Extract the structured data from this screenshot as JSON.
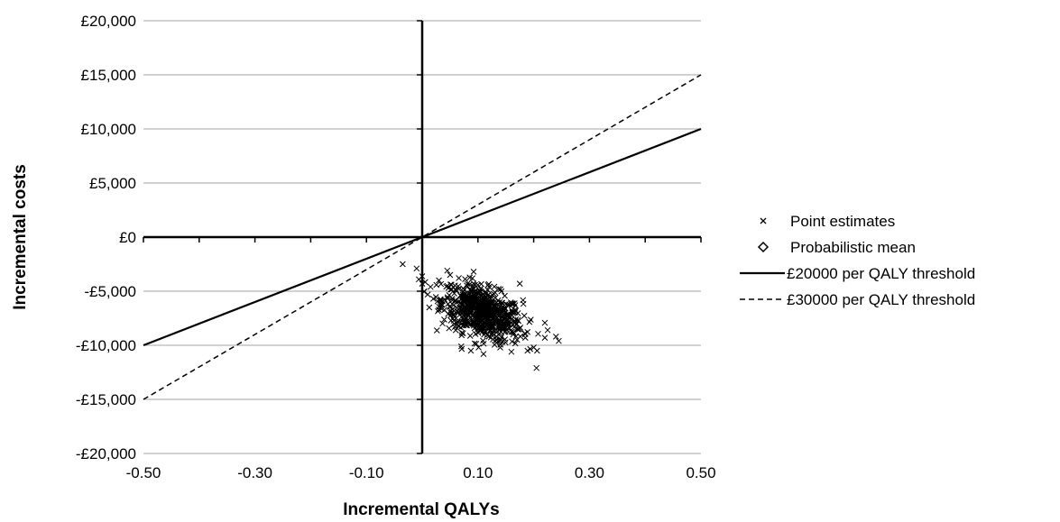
{
  "chart_data": {
    "type": "scatter",
    "title": "",
    "xlabel": "Incremental QALYs",
    "ylabel": "Incremental costs",
    "xlim": [
      -0.5,
      0.5
    ],
    "ylim": [
      -20000,
      20000
    ],
    "xticks": [
      -0.5,
      -0.3,
      -0.1,
      0.1,
      0.3,
      0.5
    ],
    "xtick_labels": [
      "-0.50",
      "-0.30",
      "-0.10",
      "0.10",
      "0.30",
      "0.50"
    ],
    "yticks": [
      20000,
      15000,
      10000,
      5000,
      0,
      -5000,
      -10000,
      -15000,
      -20000
    ],
    "ytick_labels": [
      "£20,000",
      "£15,000",
      "£10,000",
      "£5,000",
      "£0",
      "-£5,000",
      "-£10,000",
      "-£15,000",
      "-£20,000"
    ],
    "grid": "horizontal",
    "legend_position": "right",
    "series": [
      {
        "name": "Point estimates",
        "kind": "scatter",
        "marker": "x",
        "cloud": {
          "count": 700,
          "mean": [
            0.108,
            -7000
          ],
          "sd": [
            0.036,
            1300
          ],
          "correlation": -0.45
        },
        "points": [
          [
            -0.035,
            -2500
          ],
          [
            -0.01,
            -2900
          ],
          [
            -0.006,
            -3900
          ],
          [
            0.0,
            -4300
          ],
          [
            0.01,
            -5300
          ],
          [
            0.015,
            -4600
          ],
          [
            0.03,
            -4000
          ],
          [
            0.045,
            -3100
          ],
          [
            0.05,
            -3500
          ],
          [
            0.205,
            -12100
          ],
          [
            0.24,
            -9200
          ],
          [
            0.245,
            -9600
          ],
          [
            0.22,
            -9300
          ],
          [
            0.16,
            -10600
          ],
          [
            0.14,
            -10200
          ],
          [
            0.07,
            -10100
          ],
          [
            0.11,
            -10800
          ],
          [
            0.225,
            -8600
          ],
          [
            0.2,
            -10200
          ],
          [
            0.185,
            -9300
          ],
          [
            0.175,
            -4300
          ],
          [
            0.12,
            -4600
          ],
          [
            0.09,
            -3800
          ],
          [
            0.02,
            -5700
          ],
          [
            0.035,
            -6200
          ]
        ]
      },
      {
        "name": "Probabilistic mean",
        "kind": "scatter",
        "marker": "diamond",
        "points": [
          [
            0.108,
            -7000
          ]
        ]
      },
      {
        "name": "£20000 per QALY threshold",
        "kind": "line",
        "style": "solid",
        "x": [
          -0.5,
          0.5
        ],
        "y": [
          -10000,
          10000
        ]
      },
      {
        "name": "£30000 per QALY threshold",
        "kind": "line",
        "style": "dashed",
        "x": [
          -0.5,
          0.5
        ],
        "y": [
          -15000,
          15000
        ]
      }
    ]
  }
}
